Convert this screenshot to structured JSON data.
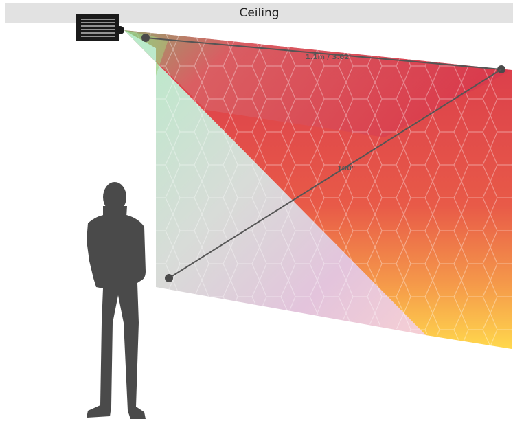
{
  "ceiling": {
    "label": "Ceiling"
  },
  "dimensions": {
    "throw_distance": "1.1m / 3.62'",
    "screen_diagonal": "100\""
  },
  "colors": {
    "ceiling_bar": "#e2e2e2",
    "projector": "#1a1a1a",
    "silhouette": "#4a4a4a",
    "dimension_line": "#555555",
    "screen_top_left": "#7fc97a",
    "screen_top_right": "#d63a4c",
    "screen_bottom_right": "#ffd84d",
    "screen_bottom_left": "#b8ecd6"
  },
  "icons": {
    "projector": "projector-icon",
    "person": "person-silhouette"
  }
}
